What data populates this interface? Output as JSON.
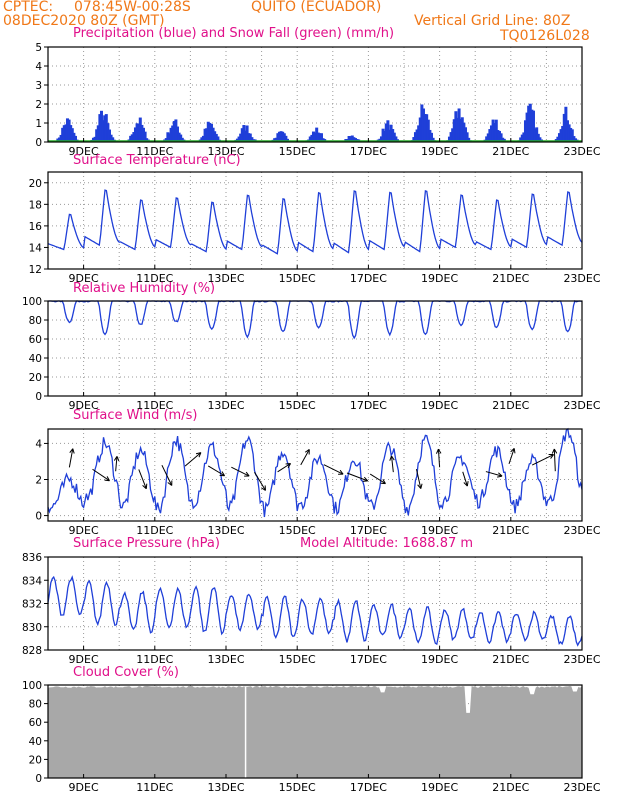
{
  "header": {
    "agency": "CPTEC:",
    "coords": "078:45W-00:28S",
    "location": "QUITO (ECUADOR)",
    "init_time": "08DEC2020 80Z (GMT)",
    "grid_note": "Vertical Grid Line: 80Z",
    "model_id": "TQ0126L028"
  },
  "colors": {
    "header": "#f07818",
    "title": "#e0108a",
    "line": "#1f3fd8",
    "precip": "#1f3fd8",
    "snow": "#22aa22",
    "cloud": "#a8a8a8",
    "grid": "#9a9a9a"
  },
  "x_axis": {
    "days": [
      "9DEC",
      "11DEC",
      "13DEC",
      "15DEC",
      "17DEC",
      "19DEC",
      "21DEC",
      "23DEC"
    ]
  },
  "chart_data": [
    {
      "type": "bar",
      "title": "Precipitation (blue) and Snow Fall (green) (mm/h)",
      "unit": "mm/h",
      "ylim": [
        0,
        5
      ],
      "yticks": [
        0,
        1,
        2,
        3,
        4,
        5
      ],
      "daily_peak_values": [
        1.4,
        1.9,
        1.4,
        1.3,
        1.2,
        1.0,
        0.6,
        0.8,
        0.4,
        1.2,
        2.2,
        2.1,
        1.4,
        2.1,
        1.9
      ],
      "snow_values": [
        0,
        0,
        0,
        0,
        0,
        0,
        0,
        0,
        0,
        0,
        0,
        0,
        0,
        0,
        0
      ]
    },
    {
      "type": "line",
      "title": "Surface Temperature (nC)",
      "unit": "nC",
      "ylim": [
        12,
        21
      ],
      "yticks": [
        12,
        14,
        16,
        18,
        20
      ],
      "daily_max": [
        17.5,
        20.0,
        19.0,
        19.2,
        18.8,
        19.5,
        19.2,
        19.8,
        20.0,
        19.8,
        20.0,
        19.5,
        19.0,
        19.6,
        19.8
      ],
      "daily_min": [
        13.8,
        14.2,
        13.8,
        14.0,
        13.6,
        13.8,
        13.4,
        13.6,
        13.5,
        13.8,
        13.6,
        14.0,
        13.8,
        14.0,
        14.2
      ]
    },
    {
      "type": "line",
      "title": "Relative Humidity (%)",
      "unit": "%",
      "ylim": [
        0,
        100
      ],
      "yticks": [
        0,
        20,
        40,
        60,
        80,
        100
      ],
      "daily_min": [
        78,
        65,
        75,
        78,
        70,
        62,
        68,
        72,
        62,
        65,
        65,
        75,
        72,
        70,
        68
      ]
    },
    {
      "type": "line",
      "title": "Surface Wind (m/s)",
      "unit": "m/s",
      "ylim": [
        -0.3,
        4.8
      ],
      "yticks": [
        0,
        2,
        4
      ],
      "daily_max": [
        2.0,
        4.0,
        3.6,
        4.2,
        3.8,
        4.2,
        3.6,
        3.2,
        3.2,
        3.8,
        4.2,
        3.2,
        3.6,
        3.0,
        4.7
      ],
      "daily_min": [
        0.5,
        1.0,
        0.5,
        0.3,
        0.8,
        0.4,
        0.3,
        0.6,
        0.4,
        0.5,
        0.4,
        0.8,
        0.8,
        0.5,
        0.8
      ]
    },
    {
      "type": "line",
      "title": "Surface Pressure (hPa)",
      "annotation": "Model Altitude: 1688.87 m",
      "unit": "hPa",
      "ylim": [
        828,
        836
      ],
      "yticks": [
        828,
        830,
        832,
        834,
        836
      ],
      "daily_max": [
        834.6,
        834.3,
        833.4,
        833.6,
        834.0,
        833.2,
        833.0,
        832.8,
        832.6,
        832.2,
        832.0,
        831.8,
        831.6,
        831.4,
        831.2
      ],
      "daily_min": [
        830.6,
        829.8,
        829.2,
        829.6,
        829.0,
        829.4,
        828.6,
        829.0,
        828.4,
        828.8,
        828.2,
        828.6,
        828.4,
        828.6,
        828.2
      ]
    },
    {
      "type": "area",
      "title": "Cloud Cover (%)",
      "unit": "%",
      "ylim": [
        0,
        100
      ],
      "yticks": [
        0,
        20,
        40,
        60,
        80,
        100
      ],
      "typical_value": 98,
      "dips": [
        {
          "day": 17.4,
          "value": 92
        },
        {
          "day": 19.8,
          "value": 70
        },
        {
          "day": 21.6,
          "value": 90
        },
        {
          "day": 22.8,
          "value": 93
        }
      ]
    }
  ]
}
